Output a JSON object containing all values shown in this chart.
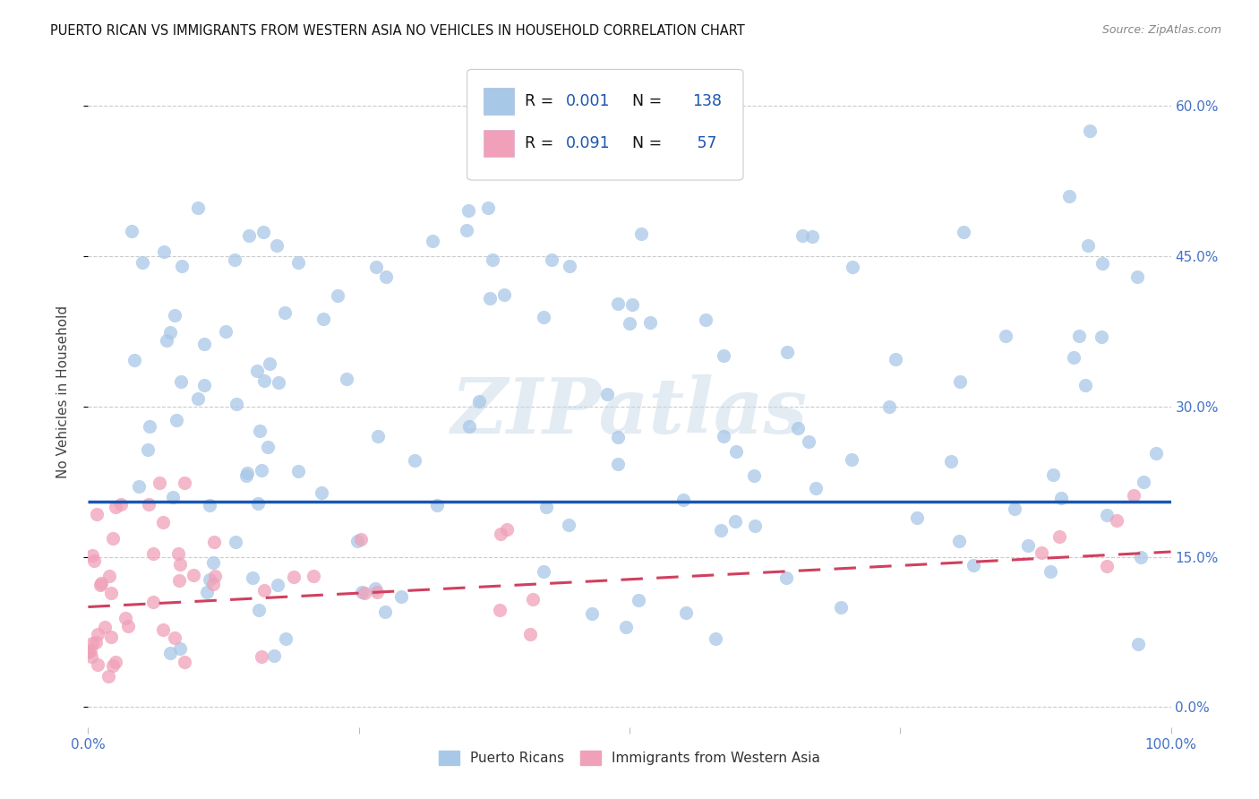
{
  "title": "PUERTO RICAN VS IMMIGRANTS FROM WESTERN ASIA NO VEHICLES IN HOUSEHOLD CORRELATION CHART",
  "source": "Source: ZipAtlas.com",
  "ylabel": "No Vehicles in Household",
  "yticks": [
    0.0,
    0.15,
    0.3,
    0.45,
    0.6
  ],
  "ytick_labels": [
    "0.0%",
    "15.0%",
    "30.0%",
    "45.0%",
    "60.0%"
  ],
  "xlim": [
    0.0,
    1.0
  ],
  "ylim": [
    -0.02,
    0.65
  ],
  "blue_R": "0.001",
  "blue_N": "138",
  "pink_R": "0.091",
  "pink_N": "57",
  "blue_scatter_color": "#a8c8e8",
  "pink_scatter_color": "#f0a0b8",
  "blue_line_color": "#1a56b0",
  "pink_line_color": "#d04060",
  "watermark": "ZIPatlas",
  "legend_label_blue": "Puerto Ricans",
  "legend_label_pink": "Immigrants from Western Asia",
  "background_color": "#ffffff",
  "grid_color": "#cccccc",
  "title_fontsize": 10.5,
  "tick_color": "#4472c4",
  "blue_trend_y": 0.205,
  "pink_trend_slope": 0.055,
  "pink_trend_intercept": 0.1,
  "marker_size": 120,
  "marker_alpha": 0.75
}
